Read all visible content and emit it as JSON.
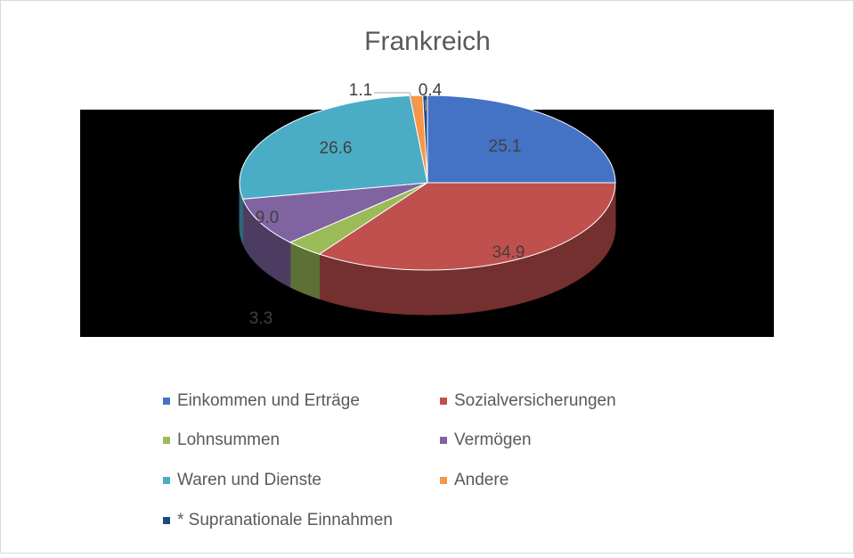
{
  "chart_data": {
    "type": "pie",
    "title": "Frankreich",
    "categories": [
      "Einkommen und Erträge",
      "Sozialversicherungen",
      "Lohnsummen",
      "Vermögen",
      "Waren und Dienste",
      "Andere",
      "* Supranationale Einnahmen"
    ],
    "values": [
      25.1,
      34.9,
      3.3,
      9.0,
      26.6,
      1.1,
      0.4
    ],
    "value_labels": [
      "25.1",
      "34.9",
      "3.3",
      "9.0",
      "26.6",
      "1.1",
      "0.4"
    ],
    "colors": [
      "#4472c4",
      "#c0504d",
      "#9bbb59",
      "#8064a2",
      "#4bacc6",
      "#f79646",
      "#1f497d"
    ],
    "legend": "bottom"
  }
}
